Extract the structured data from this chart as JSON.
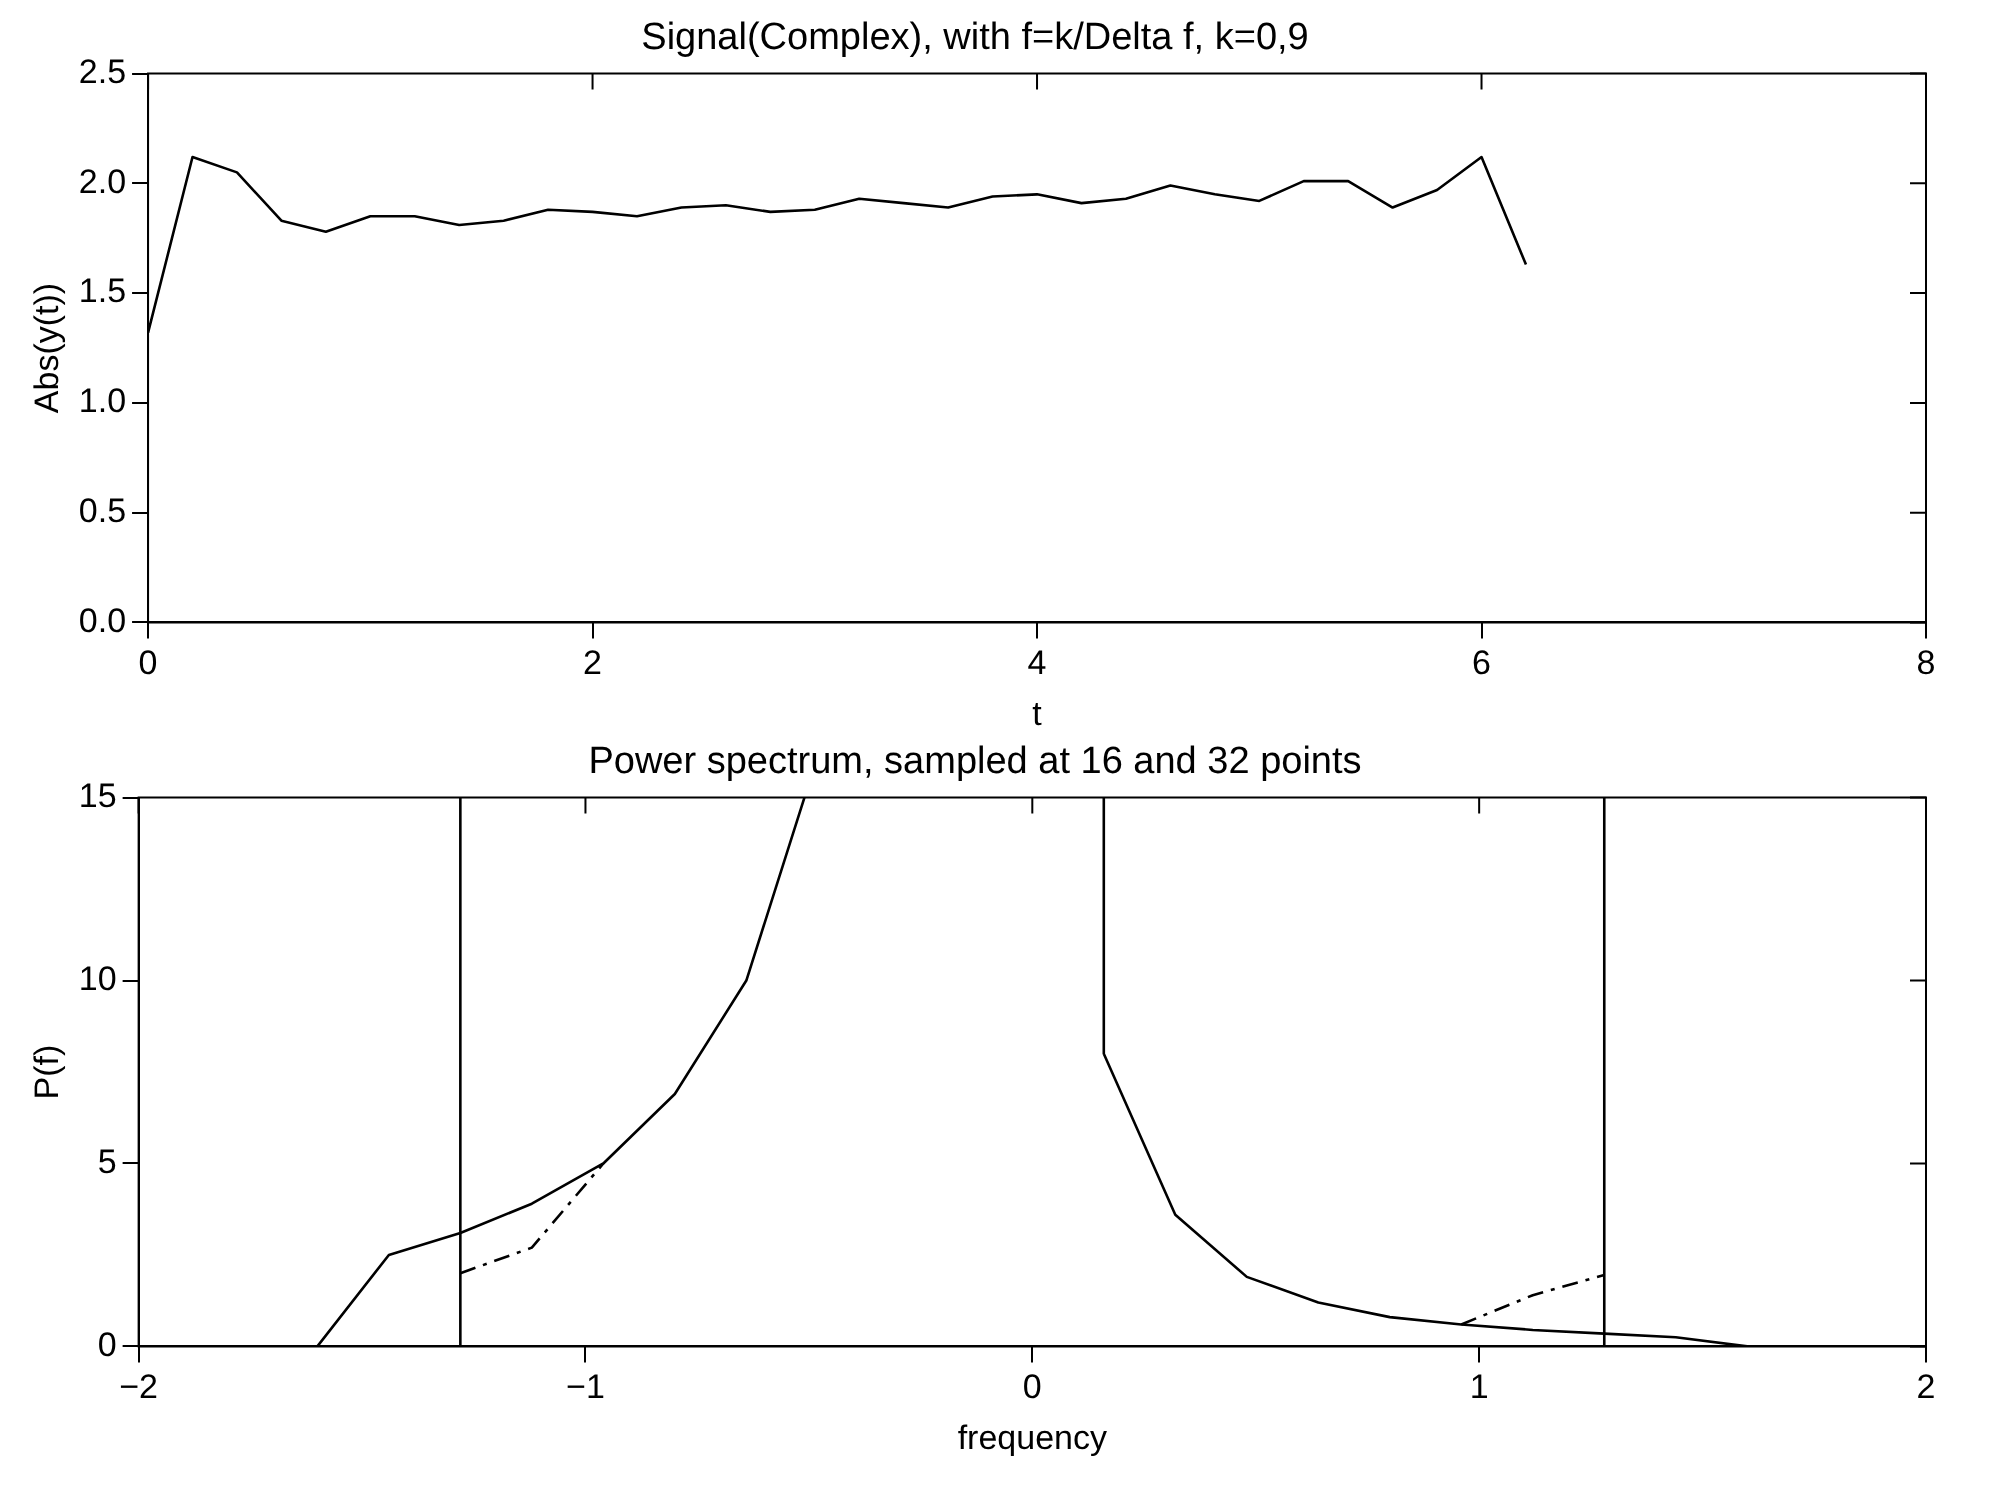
{
  "chart_data": [
    {
      "type": "line",
      "title": "Signal(Complex), with f=k/Delta f, k=0,9",
      "xlabel": "t",
      "ylabel": "Abs(y(t))",
      "x": [
        0,
        0.2,
        0.4,
        0.6,
        0.8,
        1.0,
        1.2,
        1.4,
        1.6,
        1.8,
        2.0,
        2.2,
        2.4,
        2.6,
        2.8,
        3.0,
        3.2,
        3.4,
        3.6,
        3.8,
        4.0,
        4.2,
        4.4,
        4.6,
        4.8,
        5.0,
        5.2,
        5.4,
        5.6,
        5.8,
        6.0,
        6.2
      ],
      "series": [
        {
          "color": "#000000",
          "line_style": "solid",
          "values": [
            1.32,
            2.12,
            2.05,
            1.83,
            1.78,
            1.85,
            1.85,
            1.81,
            1.83,
            1.88,
            1.87,
            1.85,
            1.89,
            1.9,
            1.87,
            1.88,
            1.93,
            1.91,
            1.89,
            1.94,
            1.95,
            1.91,
            1.93,
            1.99,
            1.95,
            1.92,
            2.01,
            2.01,
            1.89,
            1.97,
            2.12,
            1.63
          ]
        }
      ],
      "xlim": [
        0,
        8
      ],
      "xticks": [
        0,
        2,
        4,
        6,
        8
      ],
      "ylim": [
        0,
        2.5
      ],
      "yticks": [
        {
          "value": 0,
          "label": "0.0"
        },
        {
          "value": 0.5,
          "label": "0.5"
        },
        {
          "value": 1,
          "label": "1.0"
        },
        {
          "value": 1.5,
          "label": "1.5"
        },
        {
          "value": 2,
          "label": "2.0"
        },
        {
          "value": 2.5,
          "label": "2.5"
        }
      ],
      "grid": false,
      "legend": false
    },
    {
      "type": "line",
      "title": "Power spectrum, sampled at 16 and 32 points",
      "xlabel": "frequency",
      "ylabel": "P(f)",
      "series": [
        {
          "color": "#000000",
          "line_style": "solid",
          "x": [
            -2,
            -1.6,
            -1.44,
            -1.28,
            -1.12,
            -0.96,
            -0.8,
            -0.64,
            -0.51,
            0,
            0.16,
            0.16,
            0.32,
            0.48,
            0.64,
            0.8,
            0.96,
            1.12,
            1.28,
            1.44,
            1.6,
            2
          ],
          "values": [
            0,
            0,
            2.5,
            3.1,
            3.9,
            5.0,
            6.9,
            10.0,
            15,
            null,
            15,
            8.0,
            3.6,
            1.9,
            1.2,
            0.8,
            0.6,
            0.45,
            0.35,
            0.25,
            0,
            0
          ]
        },
        {
          "color": "#000000",
          "line_style": "dashed",
          "x": [
            -1.28,
            -1.12,
            -0.96,
            0,
            0.96,
            1.12,
            1.28
          ],
          "values": [
            2.0,
            2.7,
            5.0,
            null,
            0.6,
            1.4,
            1.95
          ]
        }
      ],
      "xlim": [
        -2,
        2
      ],
      "xticks": [
        {
          "value": -2,
          "label": "−2"
        },
        {
          "value": -1,
          "label": "−1"
        },
        0,
        1,
        2
      ],
      "ylim": [
        0,
        15
      ],
      "yticks": [
        0,
        5,
        10,
        15
      ],
      "ref_lines": [
        {
          "axis": "x",
          "value": -1.28,
          "color": "#000000"
        },
        {
          "axis": "x",
          "value": 1.28,
          "color": "#000000"
        }
      ],
      "grid": false,
      "legend": false
    }
  ]
}
